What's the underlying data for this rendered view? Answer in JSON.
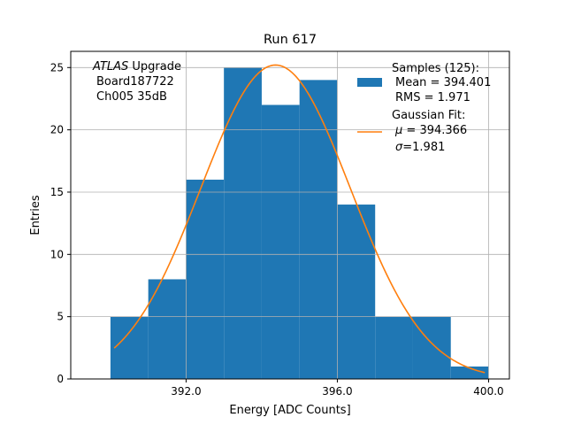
{
  "chart_data": {
    "type": "bar",
    "title": "Run 617",
    "xlabel": "Energy [ADC Counts]",
    "ylabel": "Entries",
    "xlim": [
      388.95,
      400.55
    ],
    "ylim": [
      0,
      26.3
    ],
    "grid": true,
    "xticks": [
      392,
      396,
      400
    ],
    "xtick_labels": [
      "392.0",
      "396.0",
      "400.0"
    ],
    "yticks": [
      0,
      5,
      10,
      15,
      20,
      25
    ],
    "ytick_labels": [
      "0",
      "5",
      "10",
      "15",
      "20",
      "25"
    ],
    "bin_edges": [
      390,
      391,
      392,
      393,
      394,
      395,
      396,
      397,
      398,
      399,
      400
    ],
    "counts": [
      5,
      8,
      16,
      25,
      22,
      24,
      14,
      5,
      5,
      1
    ],
    "bar_color": "#1f77b4",
    "fit": {
      "type": "gaussian",
      "mu": 394.366,
      "sigma": 1.981,
      "amplitude": 25.2,
      "x_range": [
        390.1,
        399.9
      ],
      "color": "#ff7f0e"
    },
    "annotation": {
      "line1_italic": "ATLAS",
      "line1_rest": " Upgrade",
      "line2": "Board187722",
      "line3": "Ch005 35dB"
    },
    "legend": {
      "placement": "top-right",
      "samples_title": "Samples (125):",
      "samples_mean": "Mean = 394.401",
      "samples_rms": "RMS = 1.971",
      "fit_title": "Gaussian Fit:",
      "fit_mu_symbol": "μ",
      "fit_mu_value": " = 394.366",
      "fit_sigma_symbol": "σ",
      "fit_sigma_value": "=1.981"
    }
  }
}
